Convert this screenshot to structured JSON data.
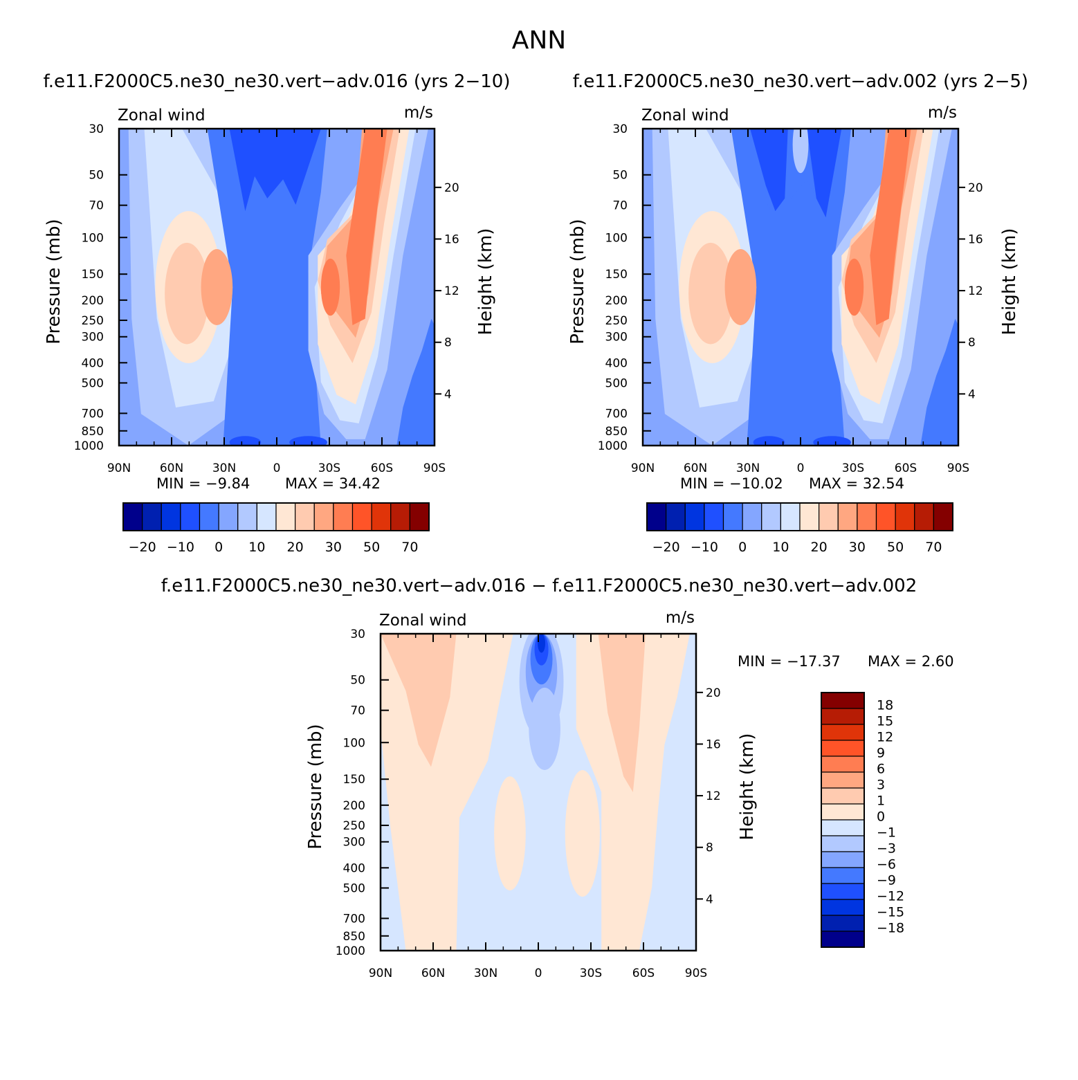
{
  "figure": {
    "main_title": "ANN",
    "titles": {
      "left": "f.e11.F2000C5.ne30_ne30.vert−adv.016 (yrs 2−10)",
      "right": "f.e11.F2000C5.ne30_ne30.vert−adv.002 (yrs 2−5)",
      "bottom": "f.e11.F2000C5.ne30_ne30.vert−adv.016 − f.e11.F2000C5.ne30_ne30.vert−adv.002"
    }
  },
  "chart_data": [
    {
      "type": "heatmap",
      "id": "run016",
      "title": "f.e11.F2000C5.ne30_ne30.vert−adv.016 (yrs 2−10)",
      "variable": "Zonal wind",
      "units": "m/s",
      "xlabel": "",
      "ylabel": "Pressure (mb)",
      "y2label": "Height (km)",
      "x_ticks": [
        "90N",
        "60N",
        "30N",
        "0",
        "30S",
        "60S",
        "90S"
      ],
      "y_ticks": [
        30,
        50,
        70,
        100,
        150,
        200,
        250,
        300,
        400,
        500,
        700,
        850,
        1000
      ],
      "y2_ticks": [
        20,
        16,
        12,
        8,
        4
      ],
      "min_text": "MIN =   −9.84",
      "max_text": "MAX =   34.42",
      "min": -9.84,
      "max": 34.42,
      "colorbar": {
        "orientation": "horizontal",
        "colors": [
          "#00008b",
          "#0020b0",
          "#0035e0",
          "#1f50ff",
          "#4479ff",
          "#84a6ff",
          "#b2c9ff",
          "#d6e6ff",
          "#ffe7d4",
          "#ffcbb0",
          "#ffa781",
          "#ff7d52",
          "#ff5428",
          "#e03409",
          "#b61c05",
          "#840000"
        ],
        "tick_labels": [
          "−20",
          "−10",
          "0",
          "10",
          "20",
          "30",
          "50",
          "70"
        ]
      }
    },
    {
      "type": "heatmap",
      "id": "run002",
      "title": "f.e11.F2000C5.ne30_ne30.vert−adv.002 (yrs 2−5)",
      "variable": "Zonal wind",
      "units": "m/s",
      "xlabel": "",
      "ylabel": "Pressure (mb)",
      "y2label": "Height (km)",
      "x_ticks": [
        "90N",
        "60N",
        "30N",
        "0",
        "30S",
        "60S",
        "90S"
      ],
      "y_ticks": [
        30,
        50,
        70,
        100,
        150,
        200,
        250,
        300,
        400,
        500,
        700,
        850,
        1000
      ],
      "y2_ticks": [
        20,
        16,
        12,
        8,
        4
      ],
      "min_text": "MIN = −10.02",
      "max_text": "MAX =   32.54",
      "min": -10.02,
      "max": 32.54,
      "colorbar": {
        "orientation": "horizontal",
        "colors": [
          "#00008b",
          "#0020b0",
          "#0035e0",
          "#1f50ff",
          "#4479ff",
          "#84a6ff",
          "#b2c9ff",
          "#d6e6ff",
          "#ffe7d4",
          "#ffcbb0",
          "#ffa781",
          "#ff7d52",
          "#ff5428",
          "#e03409",
          "#b61c05",
          "#840000"
        ],
        "tick_labels": [
          "−20",
          "−10",
          "0",
          "10",
          "20",
          "30",
          "50",
          "70"
        ]
      }
    },
    {
      "type": "heatmap",
      "id": "diff",
      "title": "f.e11.F2000C5.ne30_ne30.vert−adv.016 − f.e11.F2000C5.ne30_ne30.vert−adv.002",
      "variable": "Zonal wind",
      "units": "m/s",
      "xlabel": "",
      "ylabel": "Pressure (mb)",
      "y2label": "Height (km)",
      "x_ticks": [
        "90N",
        "60N",
        "30N",
        "0",
        "30S",
        "60S",
        "90S"
      ],
      "y_ticks": [
        30,
        50,
        70,
        100,
        150,
        200,
        250,
        300,
        400,
        500,
        700,
        850,
        1000
      ],
      "y2_ticks": [
        20,
        16,
        12,
        8,
        4
      ],
      "min_text": "MIN = −17.37",
      "max_text": "MAX =     2.60",
      "min": -17.37,
      "max": 2.6,
      "colorbar": {
        "orientation": "vertical",
        "colors": [
          "#00008b",
          "#0020b0",
          "#0035e0",
          "#1f50ff",
          "#4479ff",
          "#84a6ff",
          "#b2c9ff",
          "#d6e6ff",
          "#ffe7d4",
          "#ffcbb0",
          "#ffa781",
          "#ff7d52",
          "#ff5428",
          "#e03409",
          "#b61c05",
          "#840000"
        ],
        "tick_labels": [
          "−18",
          "−15",
          "−12",
          "−9",
          "−6",
          "−3",
          "−1",
          "0",
          "1",
          "3",
          "6",
          "9",
          "12",
          "15",
          "18"
        ]
      }
    }
  ]
}
